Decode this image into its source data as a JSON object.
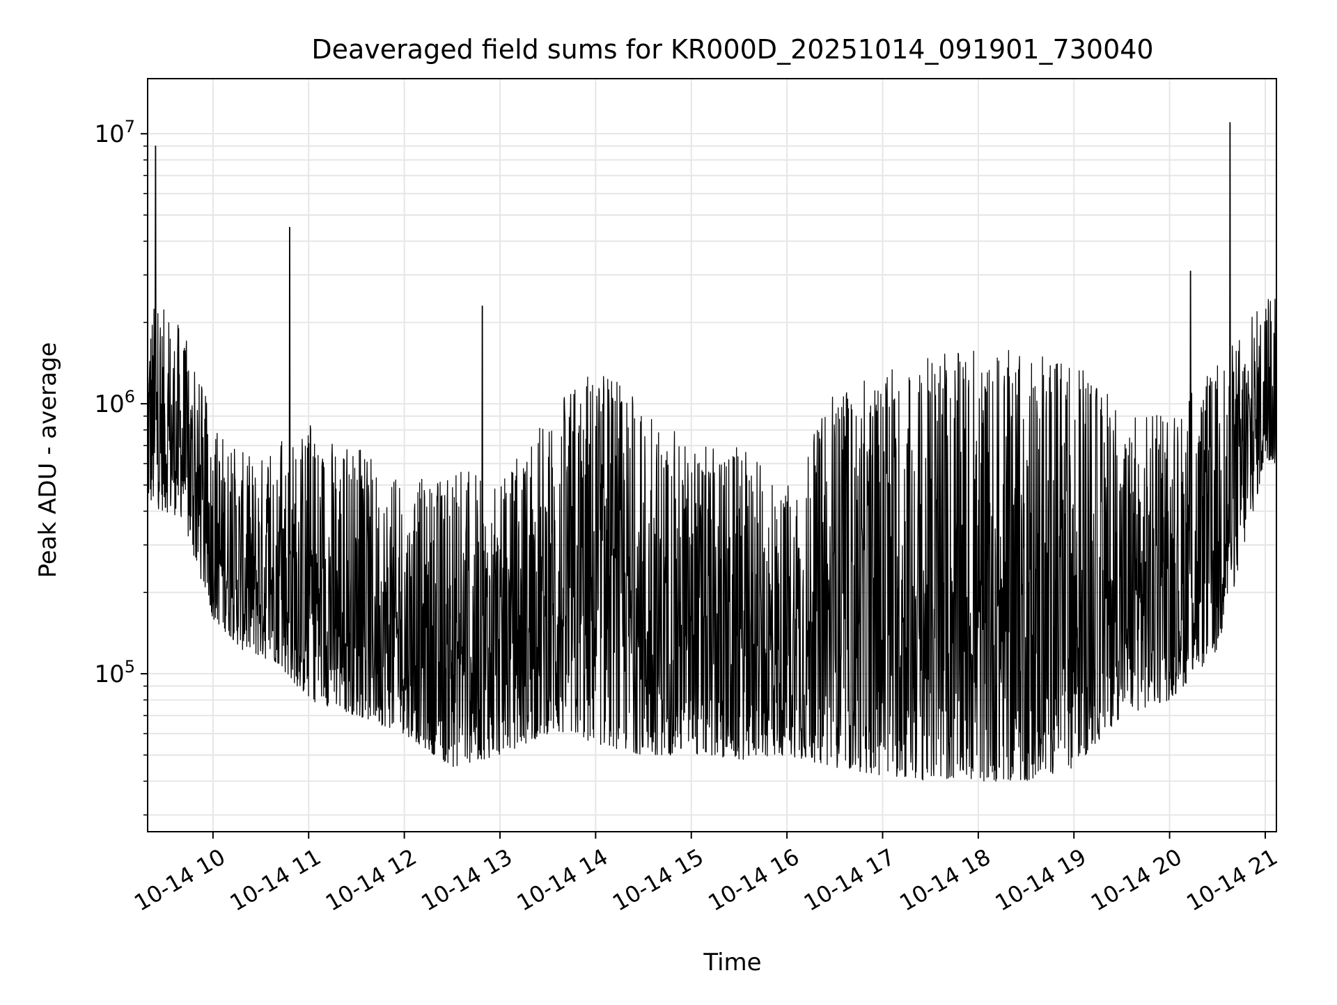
{
  "chart_data": {
    "type": "line",
    "title": "Deaveraged field sums for KR000D_20251014_091901_730040",
    "xlabel": "Time",
    "ylabel": "Peak ADU - average",
    "x_axis": {
      "kind": "datetime",
      "range": [
        "2025-10-14T09:19:00",
        "2025-10-14T21:07:00"
      ],
      "tick_labels": [
        "10-14 10",
        "10-14 11",
        "10-14 12",
        "10-14 13",
        "10-14 14",
        "10-14 15",
        "10-14 16",
        "10-14 17",
        "10-14 18",
        "10-14 19",
        "10-14 20",
        "10-14 21"
      ],
      "tick_label_rotation_deg": 30
    },
    "y_axis": {
      "scale": "log",
      "range": [
        26000,
        16000000
      ],
      "tick_labels": [
        {
          "base": "10",
          "exp": "5",
          "value": 100000
        },
        {
          "base": "10",
          "exp": "6",
          "value": 1000000
        },
        {
          "base": "10",
          "exp": "7",
          "value": 10000000
        }
      ]
    },
    "grid": true,
    "series": [
      {
        "color": "#000000",
        "style": "thin noisy line",
        "envelope": [
          {
            "time": "2025-10-14T09:20:00",
            "low": 420000,
            "high": 2500000
          },
          {
            "time": "2025-10-14T09:40:00",
            "low": 380000,
            "high": 2000000
          },
          {
            "time": "2025-10-14T10:00:00",
            "low": 160000,
            "high": 900000
          },
          {
            "time": "2025-10-14T10:20:00",
            "low": 120000,
            "high": 650000
          },
          {
            "time": "2025-10-14T10:40:00",
            "low": 110000,
            "high": 700000
          },
          {
            "time": "2025-10-14T11:00:00",
            "low": 80000,
            "high": 900000
          },
          {
            "time": "2025-10-14T11:30:00",
            "low": 70000,
            "high": 700000
          },
          {
            "time": "2025-10-14T12:00:00",
            "low": 60000,
            "high": 500000
          },
          {
            "time": "2025-10-14T12:30:00",
            "low": 45000,
            "high": 600000
          },
          {
            "time": "2025-10-14T13:00:00",
            "low": 50000,
            "high": 500000
          },
          {
            "time": "2025-10-14T13:30:00",
            "low": 60000,
            "high": 1000000
          },
          {
            "time": "2025-10-14T14:00:00",
            "low": 55000,
            "high": 1500000
          },
          {
            "time": "2025-10-14T14:30:00",
            "low": 50000,
            "high": 1000000
          },
          {
            "time": "2025-10-14T15:00:00",
            "low": 50000,
            "high": 700000
          },
          {
            "time": "2025-10-14T15:30:00",
            "low": 48000,
            "high": 700000
          },
          {
            "time": "2025-10-14T16:00:00",
            "low": 50000,
            "high": 500000
          },
          {
            "time": "2025-10-14T16:30:00",
            "low": 45000,
            "high": 1100000
          },
          {
            "time": "2025-10-14T17:00:00",
            "low": 42000,
            "high": 1300000
          },
          {
            "time": "2025-10-14T17:30:00",
            "low": 40000,
            "high": 1500000
          },
          {
            "time": "2025-10-14T18:00:00",
            "low": 40000,
            "high": 1600000
          },
          {
            "time": "2025-10-14T18:30:00",
            "low": 40000,
            "high": 1600000
          },
          {
            "time": "2025-10-14T19:00:00",
            "low": 45000,
            "high": 1500000
          },
          {
            "time": "2025-10-14T19:30:00",
            "low": 70000,
            "high": 1000000
          },
          {
            "time": "2025-10-14T20:00:00",
            "low": 80000,
            "high": 900000
          },
          {
            "time": "2025-10-14T20:30:00",
            "low": 120000,
            "high": 1500000
          },
          {
            "time": "2025-10-14T21:00:00",
            "low": 600000,
            "high": 2500000
          }
        ],
        "spikes": [
          {
            "time": "2025-10-14T09:24:00",
            "value": 9000000
          },
          {
            "time": "2025-10-14T10:48:00",
            "value": 4500000
          },
          {
            "time": "2025-10-14T12:49:00",
            "value": 2300000
          },
          {
            "time": "2025-10-14T20:38:00",
            "value": 11000000
          },
          {
            "time": "2025-10-14T20:13:00",
            "value": 3100000
          }
        ]
      }
    ]
  }
}
